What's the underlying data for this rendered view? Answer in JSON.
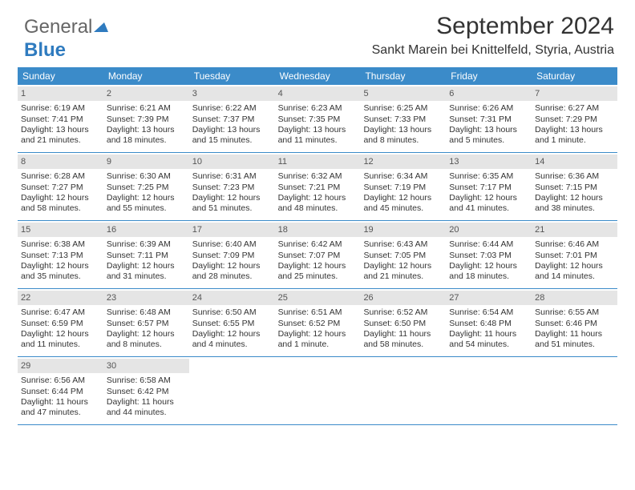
{
  "logo": {
    "part1": "General",
    "part2": "Blue"
  },
  "title": "September 2024",
  "location": "Sankt Marein bei Knittelfeld, Styria, Austria",
  "colors": {
    "header_bar": "#3b8bc9",
    "daynum_bg": "#e5e5e5",
    "text": "#333333",
    "logo_gray": "#666666",
    "logo_blue": "#2f7bbf"
  },
  "weekdays": [
    "Sunday",
    "Monday",
    "Tuesday",
    "Wednesday",
    "Thursday",
    "Friday",
    "Saturday"
  ],
  "weeks": [
    [
      {
        "n": "1",
        "sr": "Sunrise: 6:19 AM",
        "ss": "Sunset: 7:41 PM",
        "d1": "Daylight: 13 hours",
        "d2": "and 21 minutes."
      },
      {
        "n": "2",
        "sr": "Sunrise: 6:21 AM",
        "ss": "Sunset: 7:39 PM",
        "d1": "Daylight: 13 hours",
        "d2": "and 18 minutes."
      },
      {
        "n": "3",
        "sr": "Sunrise: 6:22 AM",
        "ss": "Sunset: 7:37 PM",
        "d1": "Daylight: 13 hours",
        "d2": "and 15 minutes."
      },
      {
        "n": "4",
        "sr": "Sunrise: 6:23 AM",
        "ss": "Sunset: 7:35 PM",
        "d1": "Daylight: 13 hours",
        "d2": "and 11 minutes."
      },
      {
        "n": "5",
        "sr": "Sunrise: 6:25 AM",
        "ss": "Sunset: 7:33 PM",
        "d1": "Daylight: 13 hours",
        "d2": "and 8 minutes."
      },
      {
        "n": "6",
        "sr": "Sunrise: 6:26 AM",
        "ss": "Sunset: 7:31 PM",
        "d1": "Daylight: 13 hours",
        "d2": "and 5 minutes."
      },
      {
        "n": "7",
        "sr": "Sunrise: 6:27 AM",
        "ss": "Sunset: 7:29 PM",
        "d1": "Daylight: 13 hours",
        "d2": "and 1 minute."
      }
    ],
    [
      {
        "n": "8",
        "sr": "Sunrise: 6:28 AM",
        "ss": "Sunset: 7:27 PM",
        "d1": "Daylight: 12 hours",
        "d2": "and 58 minutes."
      },
      {
        "n": "9",
        "sr": "Sunrise: 6:30 AM",
        "ss": "Sunset: 7:25 PM",
        "d1": "Daylight: 12 hours",
        "d2": "and 55 minutes."
      },
      {
        "n": "10",
        "sr": "Sunrise: 6:31 AM",
        "ss": "Sunset: 7:23 PM",
        "d1": "Daylight: 12 hours",
        "d2": "and 51 minutes."
      },
      {
        "n": "11",
        "sr": "Sunrise: 6:32 AM",
        "ss": "Sunset: 7:21 PM",
        "d1": "Daylight: 12 hours",
        "d2": "and 48 minutes."
      },
      {
        "n": "12",
        "sr": "Sunrise: 6:34 AM",
        "ss": "Sunset: 7:19 PM",
        "d1": "Daylight: 12 hours",
        "d2": "and 45 minutes."
      },
      {
        "n": "13",
        "sr": "Sunrise: 6:35 AM",
        "ss": "Sunset: 7:17 PM",
        "d1": "Daylight: 12 hours",
        "d2": "and 41 minutes."
      },
      {
        "n": "14",
        "sr": "Sunrise: 6:36 AM",
        "ss": "Sunset: 7:15 PM",
        "d1": "Daylight: 12 hours",
        "d2": "and 38 minutes."
      }
    ],
    [
      {
        "n": "15",
        "sr": "Sunrise: 6:38 AM",
        "ss": "Sunset: 7:13 PM",
        "d1": "Daylight: 12 hours",
        "d2": "and 35 minutes."
      },
      {
        "n": "16",
        "sr": "Sunrise: 6:39 AM",
        "ss": "Sunset: 7:11 PM",
        "d1": "Daylight: 12 hours",
        "d2": "and 31 minutes."
      },
      {
        "n": "17",
        "sr": "Sunrise: 6:40 AM",
        "ss": "Sunset: 7:09 PM",
        "d1": "Daylight: 12 hours",
        "d2": "and 28 minutes."
      },
      {
        "n": "18",
        "sr": "Sunrise: 6:42 AM",
        "ss": "Sunset: 7:07 PM",
        "d1": "Daylight: 12 hours",
        "d2": "and 25 minutes."
      },
      {
        "n": "19",
        "sr": "Sunrise: 6:43 AM",
        "ss": "Sunset: 7:05 PM",
        "d1": "Daylight: 12 hours",
        "d2": "and 21 minutes."
      },
      {
        "n": "20",
        "sr": "Sunrise: 6:44 AM",
        "ss": "Sunset: 7:03 PM",
        "d1": "Daylight: 12 hours",
        "d2": "and 18 minutes."
      },
      {
        "n": "21",
        "sr": "Sunrise: 6:46 AM",
        "ss": "Sunset: 7:01 PM",
        "d1": "Daylight: 12 hours",
        "d2": "and 14 minutes."
      }
    ],
    [
      {
        "n": "22",
        "sr": "Sunrise: 6:47 AM",
        "ss": "Sunset: 6:59 PM",
        "d1": "Daylight: 12 hours",
        "d2": "and 11 minutes."
      },
      {
        "n": "23",
        "sr": "Sunrise: 6:48 AM",
        "ss": "Sunset: 6:57 PM",
        "d1": "Daylight: 12 hours",
        "d2": "and 8 minutes."
      },
      {
        "n": "24",
        "sr": "Sunrise: 6:50 AM",
        "ss": "Sunset: 6:55 PM",
        "d1": "Daylight: 12 hours",
        "d2": "and 4 minutes."
      },
      {
        "n": "25",
        "sr": "Sunrise: 6:51 AM",
        "ss": "Sunset: 6:52 PM",
        "d1": "Daylight: 12 hours",
        "d2": "and 1 minute."
      },
      {
        "n": "26",
        "sr": "Sunrise: 6:52 AM",
        "ss": "Sunset: 6:50 PM",
        "d1": "Daylight: 11 hours",
        "d2": "and 58 minutes."
      },
      {
        "n": "27",
        "sr": "Sunrise: 6:54 AM",
        "ss": "Sunset: 6:48 PM",
        "d1": "Daylight: 11 hours",
        "d2": "and 54 minutes."
      },
      {
        "n": "28",
        "sr": "Sunrise: 6:55 AM",
        "ss": "Sunset: 6:46 PM",
        "d1": "Daylight: 11 hours",
        "d2": "and 51 minutes."
      }
    ],
    [
      {
        "n": "29",
        "sr": "Sunrise: 6:56 AM",
        "ss": "Sunset: 6:44 PM",
        "d1": "Daylight: 11 hours",
        "d2": "and 47 minutes."
      },
      {
        "n": "30",
        "sr": "Sunrise: 6:58 AM",
        "ss": "Sunset: 6:42 PM",
        "d1": "Daylight: 11 hours",
        "d2": "and 44 minutes."
      },
      null,
      null,
      null,
      null,
      null
    ]
  ]
}
